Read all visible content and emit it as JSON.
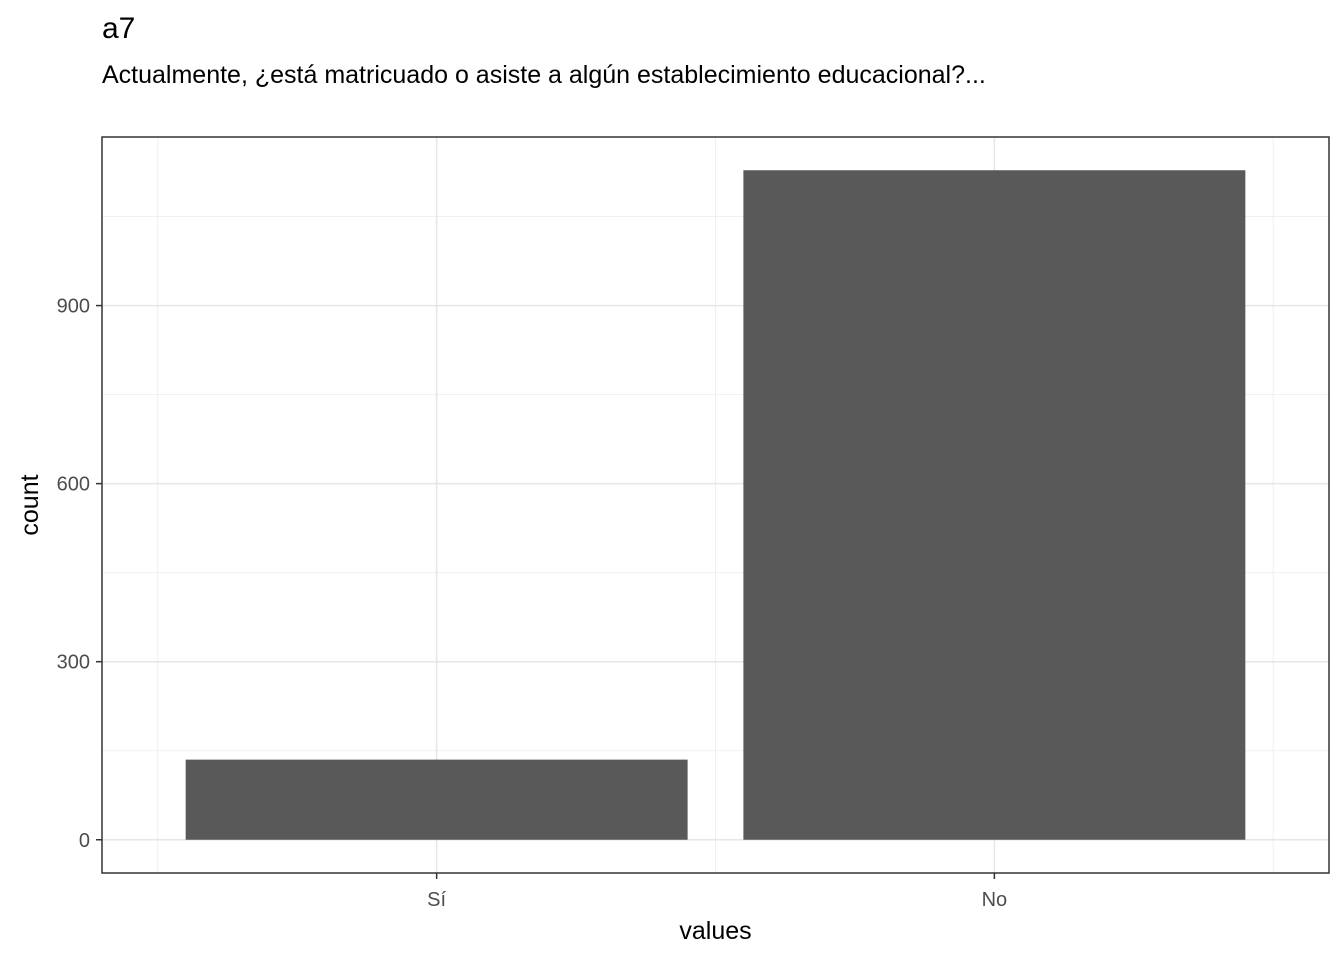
{
  "chart_data": {
    "type": "bar",
    "title": "a7",
    "subtitle": "Actualmente, ¿está matricuado o asiste a algún establecimiento educacional?...",
    "categories": [
      "Sí",
      "No"
    ],
    "values": [
      135,
      1128
    ],
    "xlabel": "values",
    "ylabel": "count",
    "ylim": [
      -56,
      1184
    ],
    "yticks": [
      0,
      300,
      600,
      900
    ],
    "bar_color": "#595959",
    "grid": true
  }
}
